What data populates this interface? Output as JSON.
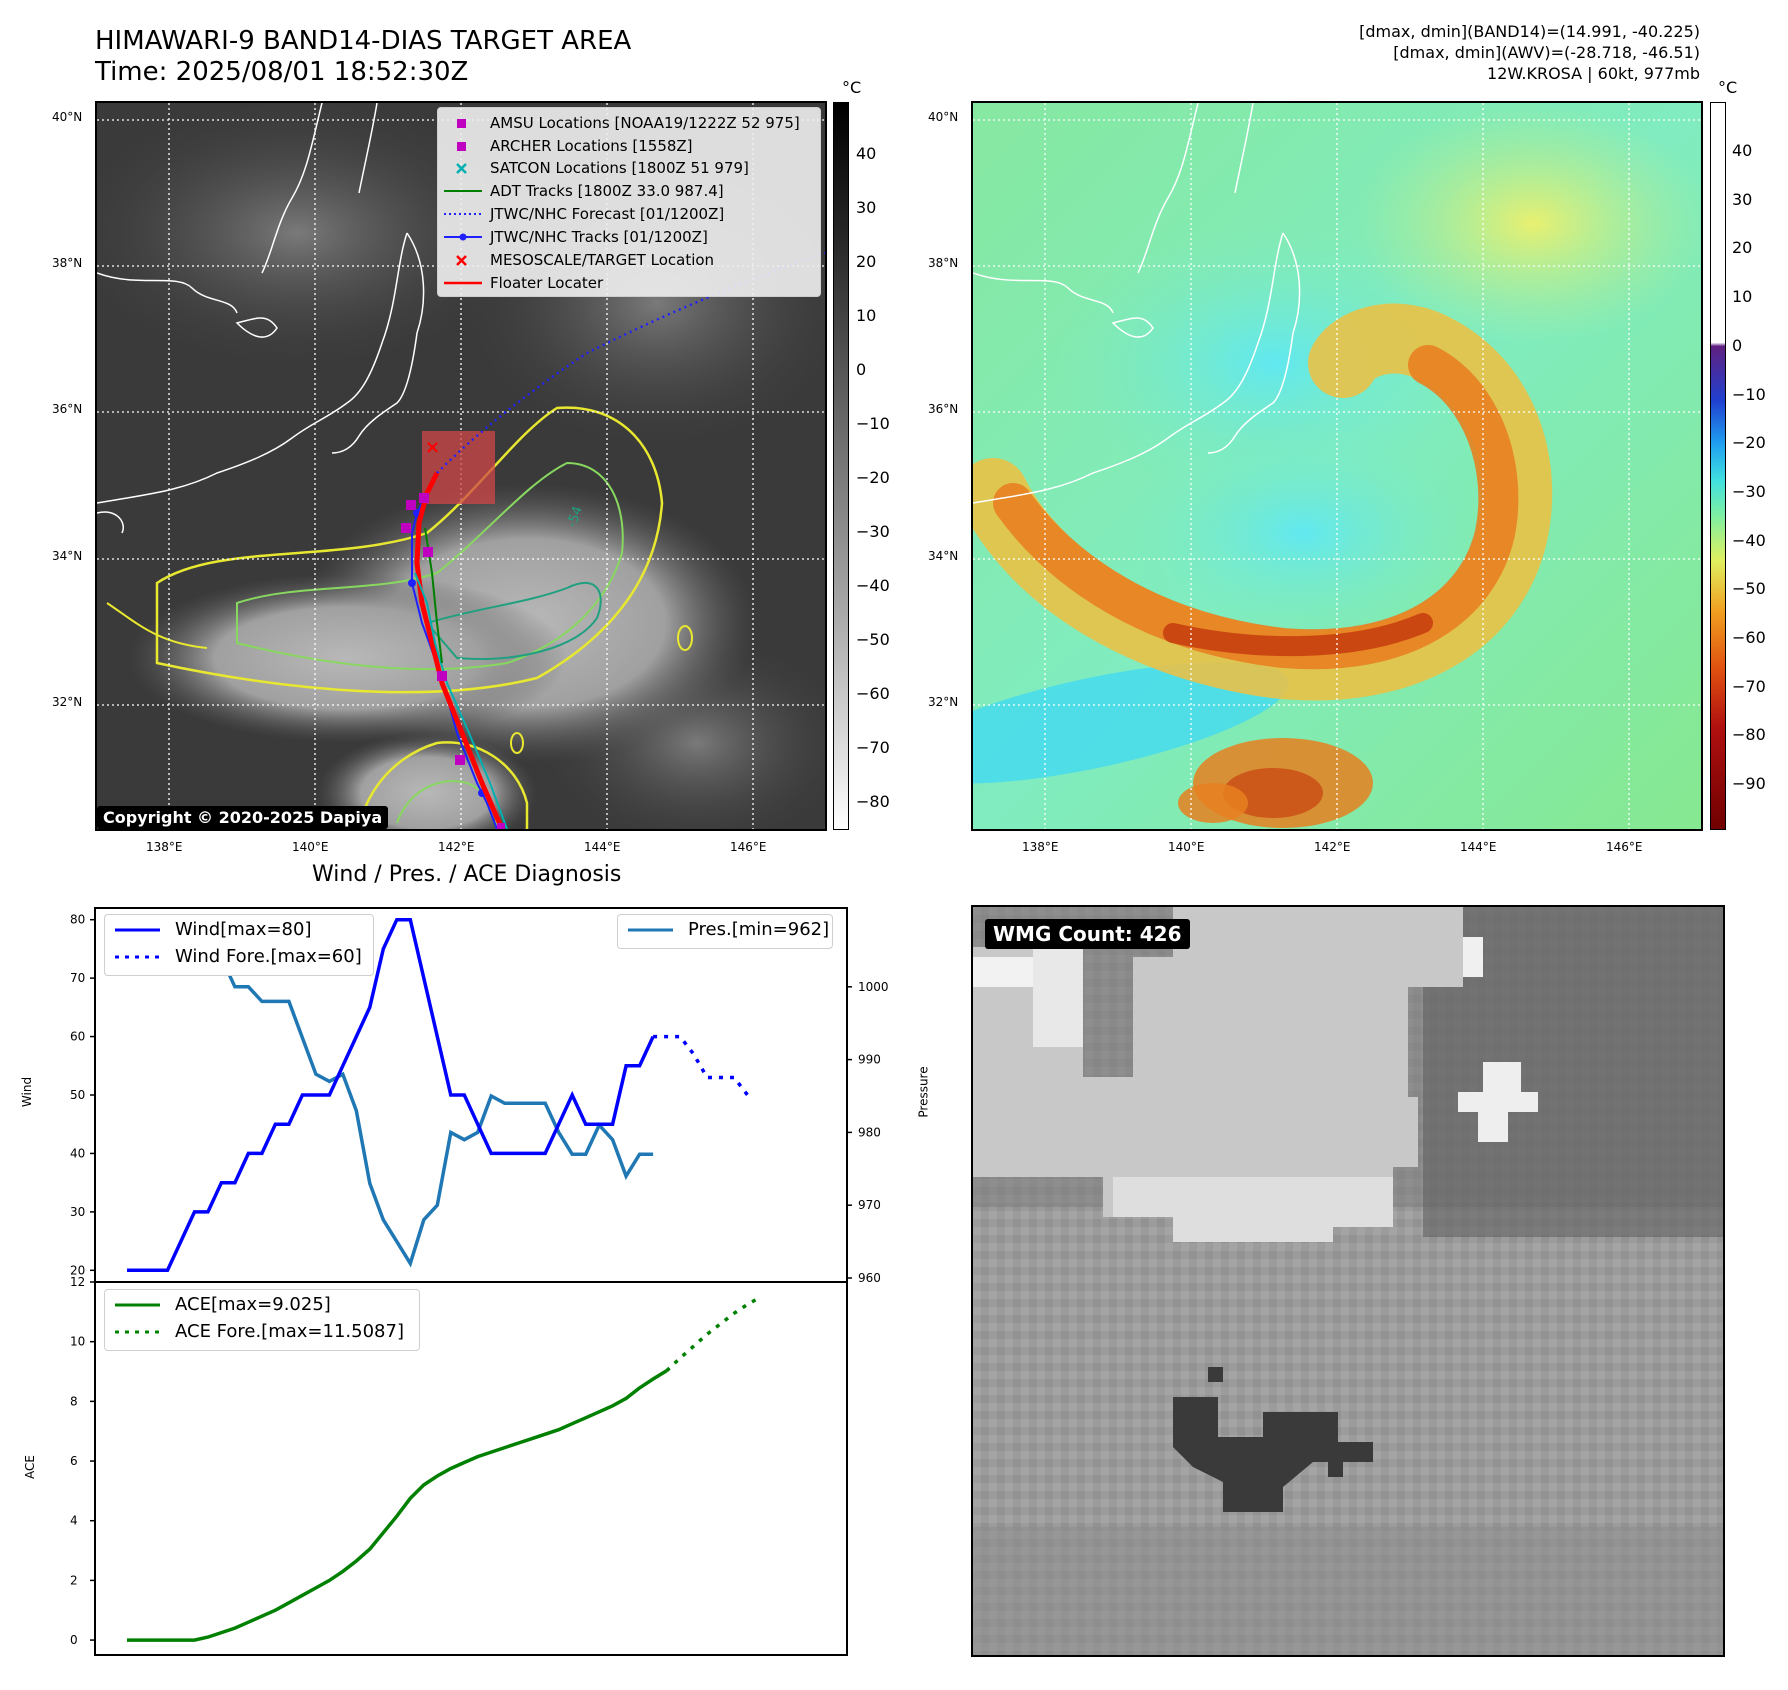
{
  "header": {
    "title_line1": "HIMAWARI-9 BAND14-DIAS TARGET AREA",
    "title_line2": "Time: 2025/08/01 18:52:30Z",
    "info_line1": "[dmax, dmin](BAND14)=(14.991, -40.225)",
    "info_line2": "[dmax, dmin](AWV)=(-28.718, -46.51)",
    "info_line3": "12W.KROSA | 60kt, 977mb"
  },
  "map_axes": {
    "lat_ticks": [
      "40°N",
      "38°N",
      "36°N",
      "34°N",
      "32°N"
    ],
    "lon_ticks": [
      "138°E",
      "140°E",
      "142°E",
      "144°E",
      "146°E"
    ]
  },
  "ir_map": {
    "legend": {
      "amsu": "AMSU Locations [NOAA19/1222Z 52 975]",
      "archer": "ARCHER Locations [1558Z]",
      "satcon": "SATCON Locations [1800Z 51 979]",
      "adt": "ADT Tracks [1800Z 33.0 987.4]",
      "jtwc_forecast": "JTWC/NHC Forecast [01/1200Z]",
      "jtwc_tracks": "JTWC/NHC Tracks [01/1200Z]",
      "mesoscale": "MESOSCALE/TARGET Location",
      "floater": "Floater Locater"
    },
    "copyright": "Copyright © 2020-2025 Dapiya",
    "colorbar_unit": "°C",
    "colorbar_ticks": [
      "40",
      "30",
      "20",
      "10",
      "0",
      "−10",
      "−20",
      "−30",
      "−40",
      "−50",
      "−60",
      "−70",
      "−80"
    ],
    "contour_label": "-54"
  },
  "wv_map": {
    "colorbar_unit": "°C",
    "colorbar_ticks": [
      "40",
      "30",
      "20",
      "10",
      "0",
      "−10",
      "−20",
      "−30",
      "−40",
      "−50",
      "−60",
      "−70",
      "−80",
      "−90"
    ]
  },
  "diagnosis": {
    "title": "Wind / Pres. / ACE Diagnosis",
    "wind_ylabel": "Wind",
    "pressure_ylabel": "Pressure",
    "ace_ylabel": "ACE",
    "legend_wind": "Wind[max=80]",
    "legend_wind_fore": "Wind Fore.[max=60]",
    "legend_pres": "Pres.[min=962]",
    "legend_ace": "ACE[max=9.025]",
    "legend_ace_fore": "ACE Fore.[max=11.5087]",
    "wind_ticks": [
      "80",
      "70",
      "60",
      "50",
      "40",
      "30",
      "20"
    ],
    "pres_ticks": [
      "1000",
      "990",
      "980",
      "970",
      "960"
    ],
    "ace_ticks": [
      "12",
      "10",
      "8",
      "6",
      "4",
      "2",
      "0"
    ]
  },
  "wmg": {
    "label": "WMG Count: 426"
  },
  "colors": {
    "wind": "#0000ff",
    "pressure": "#1f77b4",
    "ace": "#008000"
  },
  "chart_data": [
    {
      "type": "line",
      "title": "Wind / Pres. / ACE Diagnosis",
      "xlabel": "",
      "ylabel": "Wind",
      "ylim": [
        18,
        82
      ],
      "series": [
        {
          "name": "Wind[max=80]",
          "values": [
            20,
            20,
            20,
            20,
            25,
            30,
            30,
            35,
            35,
            40,
            40,
            45,
            45,
            50,
            50,
            50,
            55,
            60,
            65,
            75,
            80,
            80,
            70,
            60,
            50,
            50,
            45,
            40,
            40,
            40,
            40,
            40,
            45,
            50,
            45,
            45,
            45,
            55,
            55,
            60
          ]
        },
        {
          "name": "Wind Fore.[max=60]",
          "start_index": 39,
          "values": [
            60,
            60,
            60,
            57,
            53,
            53,
            53,
            50
          ]
        }
      ]
    },
    {
      "type": "line",
      "xlabel": "",
      "ylabel": "Pressure",
      "ylim": [
        960,
        1010
      ],
      "series": [
        {
          "name": "Pres.[min=962]",
          "values": [
            1008,
            1008,
            1008,
            1008,
            1005,
            1005,
            1004,
            1004,
            1000,
            1000,
            998,
            998,
            998,
            993,
            988,
            987,
            988,
            983,
            973,
            968,
            965,
            962,
            968,
            970,
            980,
            979,
            980,
            985,
            984,
            984,
            984,
            984,
            980,
            977,
            977,
            981,
            979,
            974,
            977,
            977
          ]
        }
      ]
    },
    {
      "type": "line",
      "xlabel": "",
      "ylabel": "ACE",
      "ylim": [
        -0.5,
        12
      ],
      "series": [
        {
          "name": "ACE[max=9.025]",
          "values": [
            0,
            0,
            0,
            0,
            0,
            0,
            0.1,
            0.25,
            0.4,
            0.6,
            0.8,
            1.0,
            1.25,
            1.5,
            1.75,
            2.0,
            2.3,
            2.65,
            3.05,
            3.6,
            4.15,
            4.75,
            5.2,
            5.5,
            5.75,
            5.95,
            6.15,
            6.3,
            6.45,
            6.6,
            6.75,
            6.9,
            7.05,
            7.25,
            7.45,
            7.65,
            7.85,
            8.1,
            8.45,
            8.75,
            9.025
          ]
        },
        {
          "name": "ACE Fore.[max=11.5087]",
          "start_index": 40,
          "values": [
            9.025,
            9.45,
            9.85,
            10.25,
            10.6,
            10.95,
            11.25,
            11.5087
          ]
        }
      ]
    }
  ]
}
